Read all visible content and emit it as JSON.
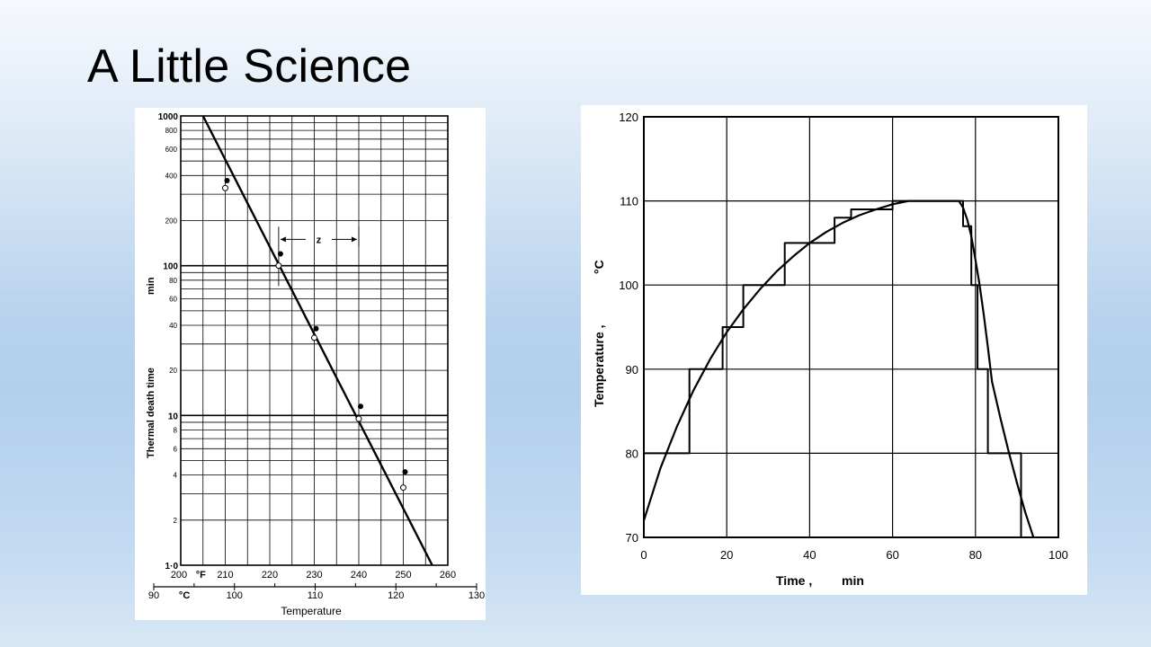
{
  "slide": {
    "title": "A Little Science"
  },
  "chart_data": [
    {
      "type": "line",
      "ylabel_parts": [
        "Thermal death time",
        "min"
      ],
      "xlabel": "Temperature",
      "y_scale": "log",
      "ylim": [
        1,
        1000
      ],
      "y_major_ticks": [
        {
          "value": 1,
          "label": "1·0"
        },
        {
          "value": 10,
          "label": "10"
        },
        {
          "value": 100,
          "label": "100"
        },
        {
          "value": 1000,
          "label": "1000"
        }
      ],
      "y_minor_ticks": [
        {
          "value": 2,
          "label": "2"
        },
        {
          "value": 4,
          "label": "4"
        },
        {
          "value": 6,
          "label": "6"
        },
        {
          "value": 8,
          "label": "8"
        },
        {
          "value": 20,
          "label": "20"
        },
        {
          "value": 40,
          "label": "40"
        },
        {
          "value": 60,
          "label": "60"
        },
        {
          "value": 80,
          "label": "80"
        },
        {
          "value": 200,
          "label": "200"
        },
        {
          "value": 400,
          "label": "400"
        },
        {
          "value": 600,
          "label": "600"
        },
        {
          "value": 800,
          "label": "800"
        }
      ],
      "x_axis_f": {
        "unit_label": "°F",
        "range": [
          200,
          260
        ],
        "ticks": [
          {
            "value": 200,
            "label": "200"
          },
          {
            "value": 210,
            "label": "210"
          },
          {
            "value": 220,
            "label": "220"
          },
          {
            "value": 230,
            "label": "230"
          },
          {
            "value": 240,
            "label": "240"
          },
          {
            "value": 250,
            "label": "250"
          },
          {
            "value": 260,
            "label": "260"
          }
        ]
      },
      "x_axis_c": {
        "unit_label": "°C",
        "range": [
          90,
          130
        ],
        "ticks": [
          {
            "value": 90,
            "label": "90"
          },
          {
            "value": 100,
            "label": "100"
          },
          {
            "value": 110,
            "label": "110"
          },
          {
            "value": 120,
            "label": "120"
          },
          {
            "value": 130,
            "label": "130"
          }
        ]
      },
      "z_annotation": {
        "label": "z",
        "x_start_f": 222,
        "x_end_f": 240,
        "y": 150
      },
      "fit_line": {
        "x_f": [
          205,
          256.5
        ],
        "y": [
          1000,
          1
        ]
      },
      "series": [
        {
          "marker": "filled",
          "x_f": [
            210,
            222,
            230,
            240,
            250
          ],
          "y": [
            370,
            120,
            38,
            11.5,
            4.2
          ]
        },
        {
          "marker": "open",
          "x_f": [
            210,
            222,
            230,
            240,
            250
          ],
          "y": [
            330,
            100,
            33,
            9.5,
            3.3
          ]
        }
      ],
      "grid": true
    },
    {
      "type": "line",
      "xlabel_parts": [
        "Time",
        "min"
      ],
      "ylabel_parts": [
        "Temperature",
        "°C"
      ],
      "xlim": [
        0,
        100
      ],
      "ylim": [
        70,
        120
      ],
      "x_ticks": [
        0,
        20,
        40,
        60,
        80,
        100
      ],
      "y_ticks": [
        70,
        80,
        90,
        100,
        110,
        120
      ],
      "grid": true,
      "series": [
        {
          "style": "curve",
          "x": [
            0,
            4,
            8,
            12,
            16,
            20,
            24,
            28,
            32,
            36,
            40,
            44,
            48,
            52,
            56,
            60,
            64,
            68,
            72,
            76,
            77,
            78,
            79,
            80,
            81,
            82,
            83,
            84,
            86,
            88,
            90,
            92,
            94
          ],
          "y": [
            72,
            78.2,
            83.2,
            87.5,
            91.2,
            94.4,
            97.1,
            99.5,
            101.6,
            103.4,
            105,
            106.3,
            107.4,
            108.3,
            109,
            109.6,
            110,
            110,
            110,
            110,
            109.2,
            107.8,
            105.8,
            103,
            100,
            96.5,
            92.6,
            88.5,
            84.2,
            80.2,
            76.5,
            73,
            70
          ]
        },
        {
          "style": "step",
          "x": [
            0,
            0,
            11,
            11,
            19,
            19,
            24,
            24,
            34,
            34,
            46,
            46,
            50,
            50,
            60,
            60,
            77,
            77,
            79,
            79,
            80.5,
            80.5,
            83,
            83,
            91,
            91,
            100
          ],
          "y": [
            70,
            80,
            80,
            90,
            90,
            95,
            95,
            100,
            100,
            105,
            105,
            108,
            108,
            109,
            109,
            110,
            110,
            107,
            107,
            100,
            100,
            90,
            90,
            80,
            80,
            70,
            70
          ]
        }
      ]
    }
  ]
}
